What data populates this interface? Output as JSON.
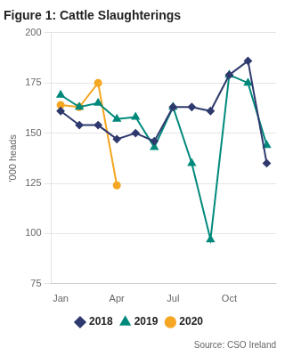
{
  "chart_data": {
    "type": "line",
    "title": "Figure 1: Cattle Slaughterings",
    "y_label": "'000 heads",
    "annotations": [
      "Source: CSO Ireland"
    ],
    "categories": [
      "Jan",
      null,
      null,
      "Apr",
      null,
      null,
      "Jul",
      null,
      null,
      "Oct",
      null,
      null
    ],
    "series": [
      {
        "name": "2018",
        "color": "#2e3a6e",
        "marker": "diamond",
        "values": [
          161,
          154,
          154,
          147,
          150,
          146,
          163,
          163,
          161,
          179,
          186,
          135
        ]
      },
      {
        "name": "2019",
        "color": "#00897b",
        "marker": "triangle",
        "values": [
          169,
          163,
          165,
          157,
          158,
          143,
          163,
          135,
          97,
          179,
          175,
          144
        ]
      },
      {
        "name": "2020",
        "color": "#f5a623",
        "marker": "circle",
        "values": [
          164,
          163,
          175,
          124,
          null,
          null,
          null,
          null,
          null,
          null,
          null,
          null
        ]
      }
    ],
    "ylim": [
      75,
      200
    ],
    "yticks": [
      75,
      100,
      125,
      150,
      175,
      200
    ],
    "grid": "y",
    "legend": "bottom"
  }
}
